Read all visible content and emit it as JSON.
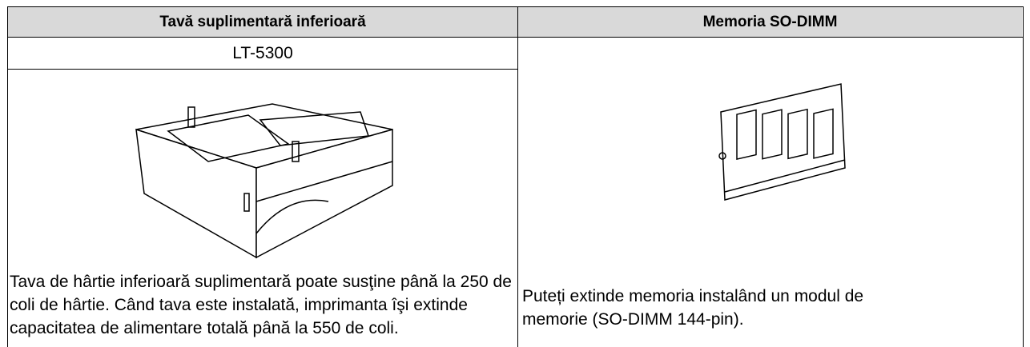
{
  "columns": [
    {
      "header": "Tavă suplimentară inferioară",
      "model": "LT-5300",
      "description": "Tava de hârtie inferioară suplimentară poate susţine până la 250 de coli de hârtie. Când tava este instalată, imprimanta îşi extinde capacitatea de alimentare totală până la 550 de coli."
    },
    {
      "header": "Memoria SO-DIMM",
      "description": "Puteți extinde memoria instalând un modul de memorie (SO-DIMM 144-pin)."
    }
  ]
}
